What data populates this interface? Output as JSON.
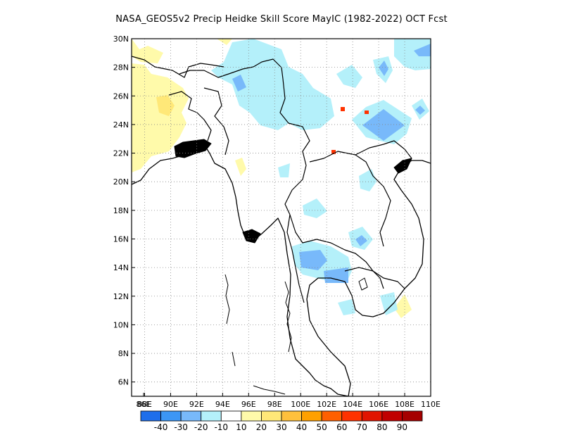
{
  "title": "NASA_GEOS5v2 Precip Heidke Skill Score MayIC (1982-2022) OCT Fcst",
  "axes": {
    "lon_range": [
      87,
      110
    ],
    "lat_range": [
      5,
      30
    ],
    "lon_ticks": [
      "86E",
      "88E",
      "90E",
      "92E",
      "94E",
      "96E",
      "98E",
      "100E",
      "102E",
      "104E",
      "106E",
      "108E",
      "110E"
    ],
    "lat_ticks": [
      "30N",
      "28N",
      "26N",
      "24N",
      "22N",
      "20N",
      "18N",
      "16N",
      "14N",
      "12N",
      "10N",
      "8N",
      "6N"
    ],
    "grid": "dotted"
  },
  "colorbar": {
    "colors": [
      "#1e6eeb",
      "#3c96f5",
      "#78b9fa",
      "#b4f0fa",
      "#ffffff",
      "#fffaaa",
      "#ffe878",
      "#ffc03c",
      "#ffa000",
      "#ff6000",
      "#ff3200",
      "#e11400",
      "#c00000",
      "#a50000"
    ],
    "labels": [
      "-40",
      "-30",
      "-20",
      "-10",
      "10",
      "20",
      "30",
      "40",
      "50",
      "60",
      "70",
      "80",
      "90"
    ]
  },
  "colors": {
    "light_blue": "#b4f0fa",
    "mid_blue": "#78b9fa",
    "blue": "#3c96f5",
    "light_yellow": "#fffaaa",
    "yellow": "#ffe878",
    "red": "#ff3200"
  }
}
